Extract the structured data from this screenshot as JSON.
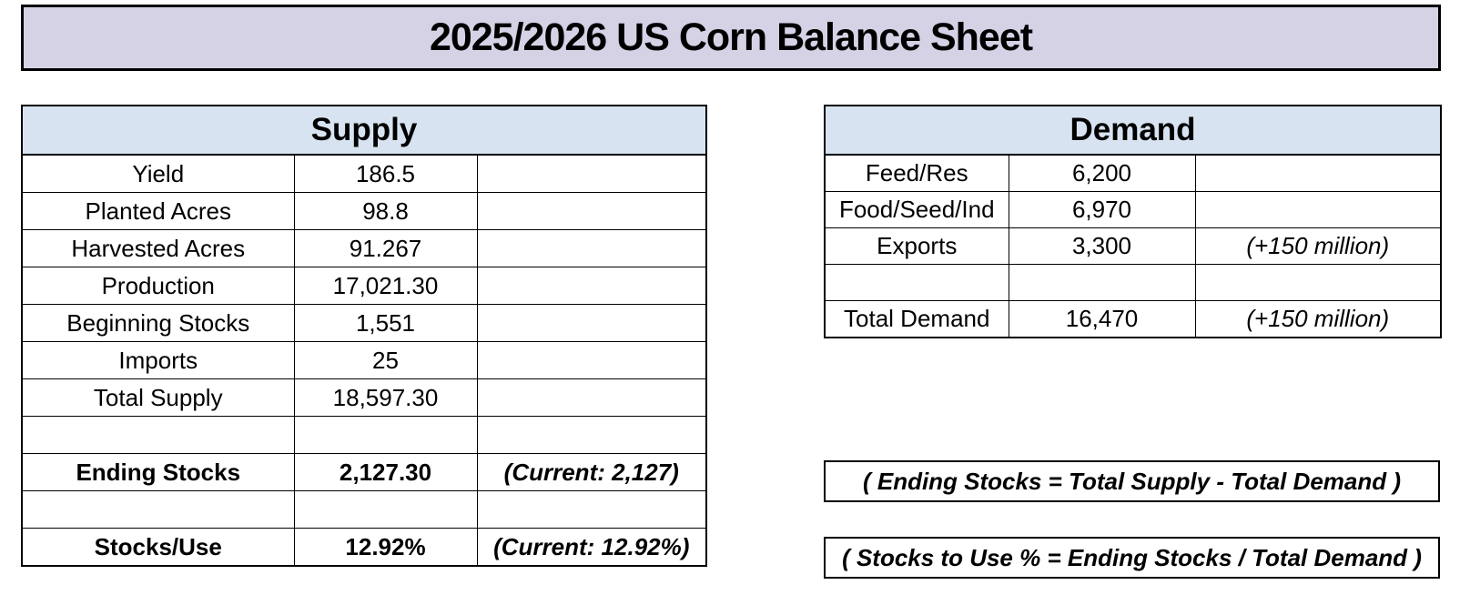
{
  "title": "2025/2026 US Corn Balance Sheet",
  "colors": {
    "title_bg": "#d6d2e5",
    "table_header_bg": "#d7e3f1",
    "border": "#000000"
  },
  "supply_table": {
    "header": "Supply",
    "rows": [
      {
        "label": "Yield",
        "value": "186.5",
        "note": "",
        "bold": false
      },
      {
        "label": "Planted Acres",
        "value": "98.8",
        "note": "",
        "bold": false
      },
      {
        "label": "Harvested Acres",
        "value": "91.267",
        "note": "",
        "bold": false
      },
      {
        "label": "Production",
        "value": "17,021.30",
        "note": "",
        "bold": false
      },
      {
        "label": "Beginning Stocks",
        "value": "1,551",
        "note": "",
        "bold": false
      },
      {
        "label": "Imports",
        "value": "25",
        "note": "",
        "bold": false
      },
      {
        "label": "Total Supply",
        "value": "18,597.30",
        "note": "",
        "bold": false
      },
      {
        "label": "",
        "value": "",
        "note": "",
        "bold": false
      },
      {
        "label": "Ending Stocks",
        "value": "2,127.30",
        "note": "(Current: 2,127)",
        "bold": true
      },
      {
        "label": "",
        "value": "",
        "note": "",
        "bold": false
      },
      {
        "label": "Stocks/Use",
        "value": "12.92%",
        "note": "(Current: 12.92%)",
        "bold": true
      }
    ]
  },
  "demand_table": {
    "header": "Demand",
    "rows": [
      {
        "label": "Feed/Res",
        "value": "6,200",
        "note": "",
        "bold": false
      },
      {
        "label": "Food/Seed/Ind",
        "value": "6,970",
        "note": "",
        "bold": false
      },
      {
        "label": "Exports",
        "value": "3,300",
        "note": "(+150 million)",
        "bold": false
      },
      {
        "label": "",
        "value": "",
        "note": "",
        "bold": false
      },
      {
        "label": "Total Demand",
        "value": "16,470",
        "note": "(+150 million)",
        "bold": false
      }
    ]
  },
  "notes": [
    "( Ending Stocks = Total Supply - Total Demand )",
    "( Stocks to Use % = Ending Stocks / Total Demand )"
  ]
}
